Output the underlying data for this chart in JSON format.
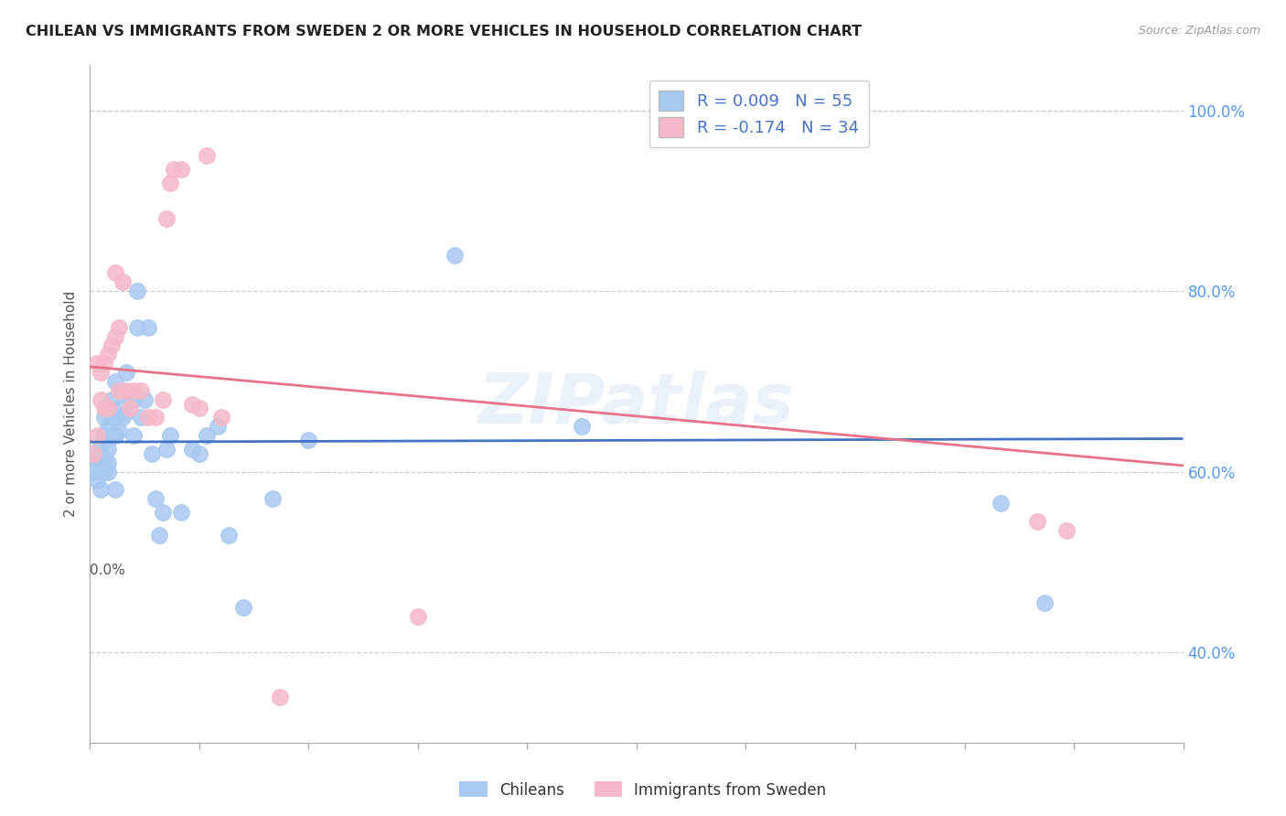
{
  "title": "CHILEAN VS IMMIGRANTS FROM SWEDEN 2 OR MORE VEHICLES IN HOUSEHOLD CORRELATION CHART",
  "source": "Source: ZipAtlas.com",
  "ylabel": "2 or more Vehicles in Household",
  "legend_label1": "Chileans",
  "legend_label2": "Immigrants from Sweden",
  "r1": 0.009,
  "n1": 55,
  "r2": -0.174,
  "n2": 34,
  "blue_color": "#a8c8f0",
  "pink_color": "#f5b8c8",
  "line_blue": "#4472c4",
  "line_pink": "#e8728a",
  "blue_scatter_x": [
    0.001,
    0.001,
    0.002,
    0.002,
    0.003,
    0.003,
    0.003,
    0.004,
    0.004,
    0.004,
    0.004,
    0.005,
    0.005,
    0.005,
    0.005,
    0.006,
    0.006,
    0.006,
    0.007,
    0.007,
    0.007,
    0.007,
    0.008,
    0.008,
    0.009,
    0.009,
    0.01,
    0.01,
    0.011,
    0.012,
    0.012,
    0.013,
    0.013,
    0.014,
    0.015,
    0.016,
    0.017,
    0.018,
    0.019,
    0.02,
    0.021,
    0.022,
    0.025,
    0.028,
    0.03,
    0.032,
    0.035,
    0.038,
    0.042,
    0.05,
    0.06,
    0.1,
    0.135,
    0.25,
    0.262
  ],
  "blue_scatter_y": [
    0.62,
    0.6,
    0.615,
    0.59,
    0.605,
    0.63,
    0.58,
    0.615,
    0.6,
    0.64,
    0.66,
    0.625,
    0.61,
    0.65,
    0.6,
    0.64,
    0.66,
    0.68,
    0.64,
    0.66,
    0.7,
    0.58,
    0.645,
    0.67,
    0.66,
    0.69,
    0.665,
    0.71,
    0.68,
    0.64,
    0.68,
    0.76,
    0.8,
    0.66,
    0.68,
    0.76,
    0.62,
    0.57,
    0.53,
    0.555,
    0.625,
    0.64,
    0.555,
    0.625,
    0.62,
    0.64,
    0.65,
    0.53,
    0.45,
    0.57,
    0.635,
    0.84,
    0.65,
    0.565,
    0.455
  ],
  "pink_scatter_x": [
    0.001,
    0.002,
    0.002,
    0.003,
    0.003,
    0.004,
    0.004,
    0.005,
    0.005,
    0.006,
    0.007,
    0.007,
    0.008,
    0.008,
    0.009,
    0.01,
    0.011,
    0.012,
    0.014,
    0.016,
    0.018,
    0.02,
    0.021,
    0.022,
    0.023,
    0.025,
    0.028,
    0.03,
    0.032,
    0.036,
    0.052,
    0.09,
    0.26,
    0.268
  ],
  "pink_scatter_y": [
    0.62,
    0.64,
    0.72,
    0.68,
    0.71,
    0.67,
    0.72,
    0.73,
    0.67,
    0.74,
    0.75,
    0.82,
    0.69,
    0.76,
    0.81,
    0.69,
    0.67,
    0.69,
    0.69,
    0.66,
    0.66,
    0.68,
    0.88,
    0.92,
    0.935,
    0.935,
    0.675,
    0.67,
    0.95,
    0.66,
    0.35,
    0.44,
    0.545,
    0.535
  ],
  "xlim": [
    0.0,
    0.3
  ],
  "ylim": [
    0.3,
    1.05
  ],
  "yticks": [
    0.4,
    0.6,
    0.8,
    1.0
  ],
  "ytick_pct": [
    "40.0%",
    "60.0%",
    "80.0%",
    "100.0%"
  ],
  "xticks_minor": [
    0.0,
    0.03,
    0.06,
    0.09,
    0.12,
    0.15,
    0.18,
    0.21,
    0.24,
    0.27,
    0.3
  ],
  "xtick_edge_left": "0.0%",
  "grid_color": "#cccccc",
  "background_color": "#ffffff",
  "watermark": "ZIPatlas"
}
